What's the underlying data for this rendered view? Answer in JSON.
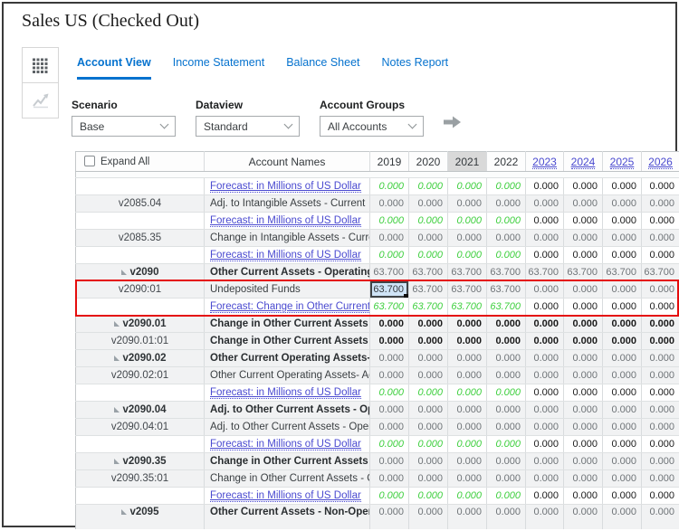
{
  "window": {
    "title": "Sales US (Checked Out)"
  },
  "view_switcher": {
    "buttons": [
      {
        "icon": "grid-icon",
        "active": true
      },
      {
        "icon": "chart-icon",
        "disabled": true
      }
    ]
  },
  "tabs": [
    {
      "label": "Account View",
      "active": true
    },
    {
      "label": "Income Statement",
      "active": false
    },
    {
      "label": "Balance Sheet",
      "active": false
    },
    {
      "label": "Notes Report",
      "active": false
    }
  ],
  "filters": [
    {
      "label": "Scenario",
      "value": "Base"
    },
    {
      "label": "Dataview",
      "value": "Standard"
    },
    {
      "label": "Account Groups",
      "value": "All Accounts"
    }
  ],
  "icons": {
    "go": "right-arrow-icon",
    "dropdown": "chevron-down-icon",
    "expand": "triangle-expand-icon",
    "selection": "selection-handle"
  },
  "colors": {
    "accent_blue": "#0572ce",
    "link_violet": "#4a4ad0",
    "forecast_green": "#3ecf3e",
    "red_box": "#e50d0d",
    "selected_cell_bg": "#cfe4f7",
    "col_highlight": "#d9d9d9"
  },
  "grid": {
    "expand_all_label": "Expand All",
    "name_header": "Account Names",
    "years": [
      {
        "label": "2019",
        "highlighted": false,
        "link": false
      },
      {
        "label": "2020",
        "highlighted": false,
        "link": false
      },
      {
        "label": "2021",
        "highlighted": true,
        "link": false
      },
      {
        "label": "2022",
        "highlighted": false,
        "link": false
      },
      {
        "label": "2023",
        "highlighted": false,
        "link": true
      },
      {
        "label": "2024",
        "highlighted": false,
        "link": true
      },
      {
        "label": "2025",
        "highlighted": false,
        "link": true
      },
      {
        "label": "2026",
        "highlighted": false,
        "link": true
      }
    ],
    "red_box_rows": [
      7,
      8
    ],
    "rows": [
      {
        "sliver": true
      },
      {
        "code": "",
        "name": "Forecast: in Millions of US Dollar",
        "link": true,
        "vstyle": "forecast",
        "values": [
          "0.000",
          "0.000",
          "0.000",
          "0.000",
          "0.000",
          "0.000",
          "0.000",
          "0.000"
        ]
      },
      {
        "code": "v2085.04",
        "name": "Adj. to Intangible Assets - Current",
        "vstyle": "gray",
        "values": [
          "0.000",
          "0.000",
          "0.000",
          "0.000",
          "0.000",
          "0.000",
          "0.000",
          "0.000"
        ]
      },
      {
        "code": "",
        "name": "Forecast: in Millions of US Dollar",
        "link": true,
        "vstyle": "forecast",
        "values": [
          "0.000",
          "0.000",
          "0.000",
          "0.000",
          "0.000",
          "0.000",
          "0.000",
          "0.000"
        ]
      },
      {
        "code": "v2085.35",
        "name": "Change in Intangible Assets - Current due",
        "vstyle": "gray",
        "values": [
          "0.000",
          "0.000",
          "0.000",
          "0.000",
          "0.000",
          "0.000",
          "0.000",
          "0.000"
        ]
      },
      {
        "code": "",
        "name": "Forecast: in Millions of US Dollar",
        "link": true,
        "vstyle": "forecast",
        "values": [
          "0.000",
          "0.000",
          "0.000",
          "0.000",
          "0.000",
          "0.000",
          "0.000",
          "0.000"
        ]
      },
      {
        "code": "v2090",
        "parent": true,
        "name": "Other Current Assets - Operating",
        "bold": true,
        "vstyle": "gray",
        "values": [
          "63.700",
          "63.700",
          "63.700",
          "63.700",
          "63.700",
          "63.700",
          "63.700",
          "63.700"
        ]
      },
      {
        "code": "v2090:01",
        "name": "Undeposited Funds",
        "vstyle": "gray",
        "selected_col": 0,
        "values": [
          "63.700",
          "63.700",
          "63.700",
          "63.700",
          "0.000",
          "0.000",
          "0.000",
          "0.000"
        ]
      },
      {
        "code": "",
        "name": "Forecast: Change in Other Current Assets",
        "link": true,
        "vstyle": "forecast",
        "values": [
          "63.700",
          "63.700",
          "63.700",
          "63.700",
          "0.000",
          "0.000",
          "0.000",
          "0.000"
        ]
      },
      {
        "code": "v2090.01",
        "parent": true,
        "name": "Change in Other Current Assets - Operating",
        "bold": true,
        "vstyle": "bold",
        "values": [
          "0.000",
          "0.000",
          "0.000",
          "0.000",
          "0.000",
          "0.000",
          "0.000",
          "0.000"
        ]
      },
      {
        "code": "v2090.01:01",
        "name": "Change in Other Current Assets - Operating",
        "bold": true,
        "vstyle": "bold",
        "values": [
          "0.000",
          "0.000",
          "0.000",
          "0.000",
          "0.000",
          "0.000",
          "0.000",
          "0.000"
        ]
      },
      {
        "code": "v2090.02",
        "parent": true,
        "name": "Other Current Operating Assets- Acquired",
        "bold": true,
        "vstyle": "gray",
        "values": [
          "0.000",
          "0.000",
          "0.000",
          "0.000",
          "0.000",
          "0.000",
          "0.000",
          "0.000"
        ]
      },
      {
        "code": "v2090.02:01",
        "name": "Other Current Operating Assets- Acquired",
        "vstyle": "gray",
        "values": [
          "0.000",
          "0.000",
          "0.000",
          "0.000",
          "0.000",
          "0.000",
          "0.000",
          "0.000"
        ]
      },
      {
        "code": "",
        "name": "Forecast: in Millions of US Dollar",
        "link": true,
        "vstyle": "forecast",
        "values": [
          "0.000",
          "0.000",
          "0.000",
          "0.000",
          "0.000",
          "0.000",
          "0.000",
          "0.000"
        ]
      },
      {
        "code": "v2090.04",
        "parent": true,
        "name": "Adj. to Other Current Assets - Operating",
        "bold": true,
        "vstyle": "gray",
        "values": [
          "0.000",
          "0.000",
          "0.000",
          "0.000",
          "0.000",
          "0.000",
          "0.000",
          "0.000"
        ]
      },
      {
        "code": "v2090.04:01",
        "name": "Adj. to Other Current Assets - Operating",
        "vstyle": "gray",
        "values": [
          "0.000",
          "0.000",
          "0.000",
          "0.000",
          "0.000",
          "0.000",
          "0.000",
          "0.000"
        ]
      },
      {
        "code": "",
        "name": "Forecast: in Millions of US Dollar",
        "link": true,
        "vstyle": "forecast",
        "values": [
          "0.000",
          "0.000",
          "0.000",
          "0.000",
          "0.000",
          "0.000",
          "0.000",
          "0.000"
        ]
      },
      {
        "code": "v2090.35",
        "parent": true,
        "name": "Change in Other Current Assets - Operating",
        "bold": true,
        "vstyle": "gray",
        "values": [
          "0.000",
          "0.000",
          "0.000",
          "0.000",
          "0.000",
          "0.000",
          "0.000",
          "0.000"
        ]
      },
      {
        "code": "v2090.35:01",
        "name": "Change in Other Current Assets - Operating",
        "vstyle": "gray",
        "values": [
          "0.000",
          "0.000",
          "0.000",
          "0.000",
          "0.000",
          "0.000",
          "0.000",
          "0.000"
        ]
      },
      {
        "code": "",
        "name": "Forecast: in Millions of US Dollar",
        "link": true,
        "vstyle": "forecast",
        "values": [
          "0.000",
          "0.000",
          "0.000",
          "0.000",
          "0.000",
          "0.000",
          "0.000",
          "0.000"
        ]
      },
      {
        "code": "v2095",
        "parent": true,
        "name": "Other Current Assets - Non-Operating",
        "bold": true,
        "vstyle": "gray",
        "cut": true,
        "values": [
          "0.000",
          "0.000",
          "0.000",
          "0.000",
          "0.000",
          "0.000",
          "0.000",
          "0.000"
        ]
      }
    ]
  }
}
